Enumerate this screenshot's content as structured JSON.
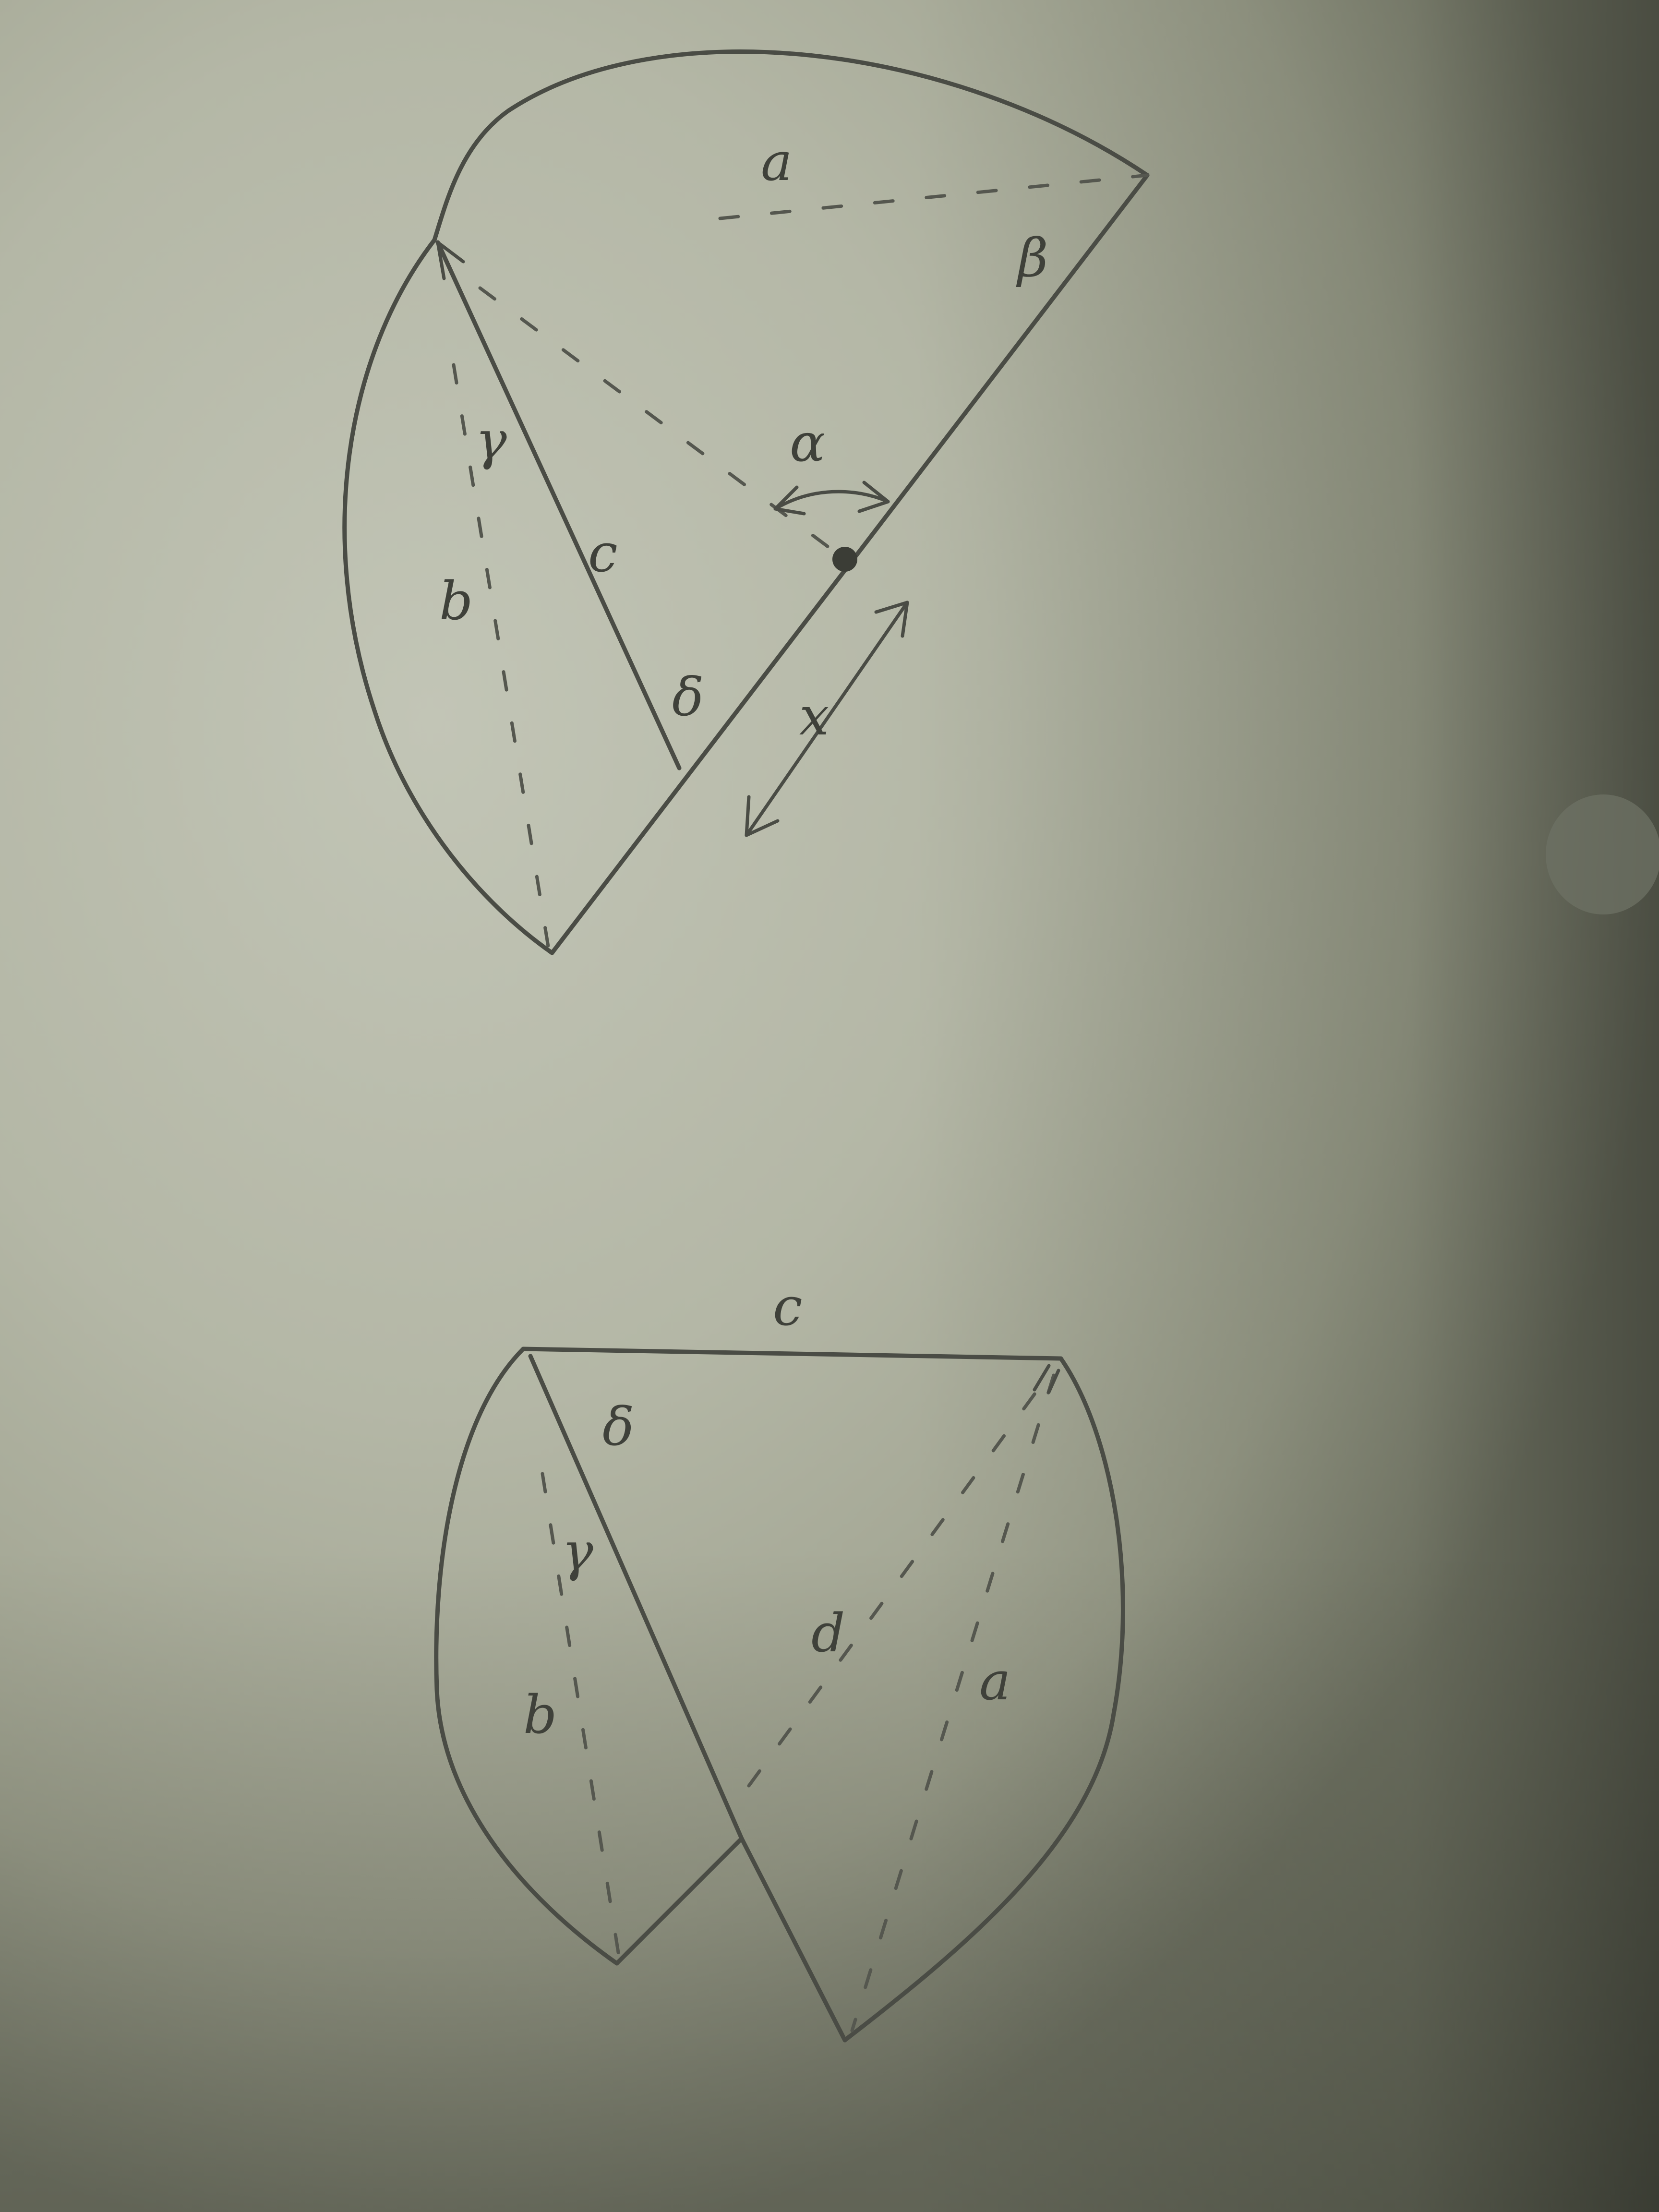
{
  "figure_top": {
    "labels": {
      "a": "a",
      "beta": "β",
      "alpha": "α",
      "gamma": "γ",
      "c": "c",
      "b": "b",
      "delta": "δ",
      "x": "x"
    }
  },
  "figure_bottom": {
    "labels": {
      "c": "c",
      "delta": "δ",
      "gamma": "γ",
      "b": "b",
      "d": "d",
      "a": "a"
    }
  }
}
